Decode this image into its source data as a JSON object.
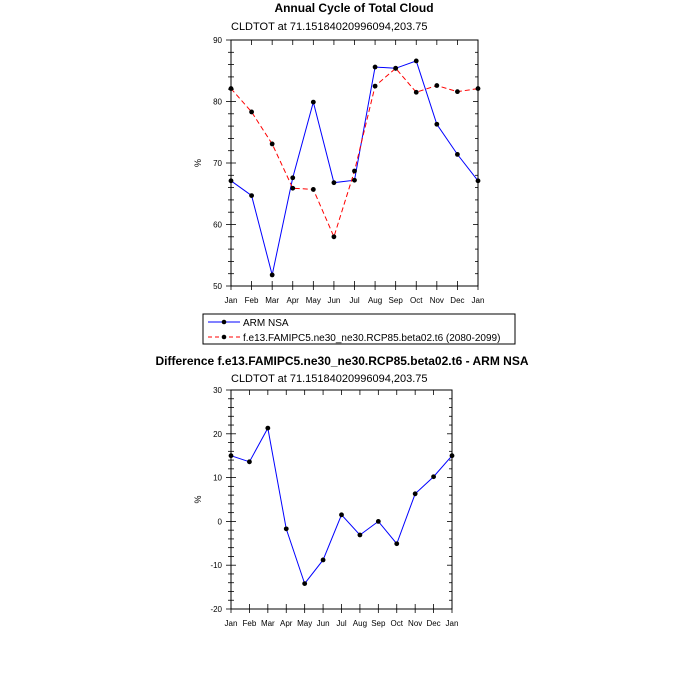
{
  "chart_data": [
    {
      "type": "line",
      "title": "Annual Cycle of Total Cloud",
      "subtitle": "CLDTOT at 71.15184020996094,203.75",
      "ylabel": "%",
      "categories": [
        "Jan",
        "Feb",
        "Mar",
        "Apr",
        "May",
        "Jun",
        "Jul",
        "Aug",
        "Sep",
        "Oct",
        "Nov",
        "Dec",
        "Jan"
      ],
      "ylim": [
        50,
        90
      ],
      "yticks": [
        50,
        60,
        70,
        80,
        90
      ],
      "series": [
        {
          "name": "ARM NSA",
          "color": "#0000ff",
          "style": "solid",
          "values": [
            67.1,
            64.7,
            51.8,
            67.6,
            79.9,
            66.8,
            67.2,
            85.6,
            85.4,
            86.6,
            76.3,
            71.4,
            67.1
          ]
        },
        {
          "name": "f.e13.FAMIPC5.ne30_ne30.RCP85.beta02.t6 (2080-2099)",
          "color": "#ff0000",
          "style": "dashed",
          "values": [
            82.1,
            78.3,
            73.1,
            65.9,
            65.7,
            58.0,
            68.7,
            82.5,
            85.4,
            81.5,
            82.6,
            81.6,
            82.1
          ]
        }
      ],
      "legend_position": "bottom"
    },
    {
      "type": "line",
      "title": "Difference f.e13.FAMIPC5.ne30_ne30.RCP85.beta02.t6 - ARM NSA",
      "subtitle": "CLDTOT at 71.15184020996094,203.75",
      "ylabel": "%",
      "categories": [
        "Jan",
        "Feb",
        "Mar",
        "Apr",
        "May",
        "Jun",
        "Jul",
        "Aug",
        "Sep",
        "Oct",
        "Nov",
        "Dec",
        "Jan"
      ],
      "ylim": [
        -20,
        30
      ],
      "yticks": [
        -20,
        -10,
        0,
        10,
        20,
        30
      ],
      "series": [
        {
          "name": "Difference",
          "color": "#0000ff",
          "style": "solid",
          "values": [
            15.0,
            13.6,
            21.3,
            -1.7,
            -14.2,
            -8.8,
            1.5,
            -3.1,
            0.0,
            -5.1,
            6.3,
            10.2,
            15.0
          ]
        }
      ]
    }
  ]
}
